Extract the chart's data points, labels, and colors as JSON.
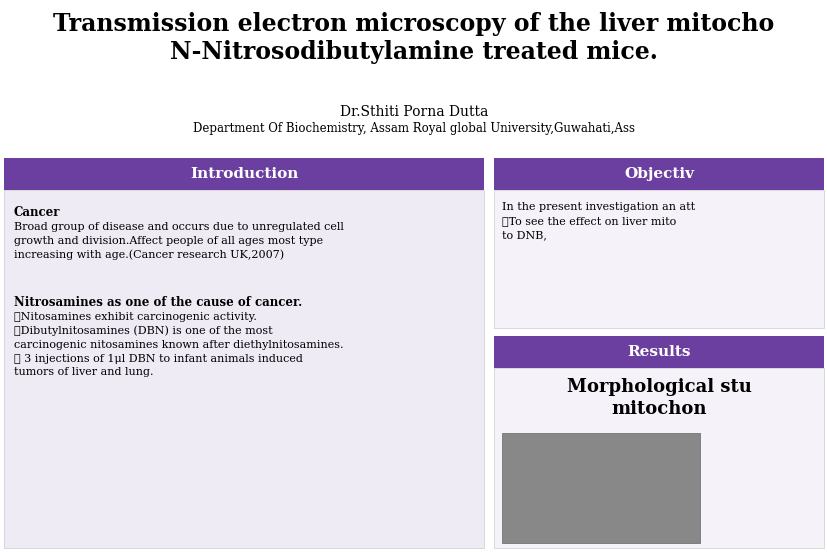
{
  "title_line1": "Transmission electron microscopy of the liver mitocho",
  "title_line2": "N-Nitrosodibutylamine treated mice.",
  "author": "Dr.Sthiti Porna Dutta",
  "affiliation": "Department Of Biochemistry, Assam Royal global University,Guwahati,Ass",
  "intro_header": "Introduction",
  "objectives_header": "Objectiv",
  "results_header": "Results",
  "header_bg_color": "#6b3fa0",
  "header_text_color": "#ffffff",
  "section_bg_left": "#eeebf5",
  "section_bg_right": "#f5f3f9",
  "background_color": "#ffffff",
  "intro_cancer_title": "Cancer",
  "intro_cancer_body": "Broad group of disease and occurs due to unregulated cell\ngrowth and division.Affect people of all ages most type\nincreasing with age.(Cancer research UK,2007)",
  "intro_nitro_title": "Nitrosamines as one of the cause of cancer.",
  "intro_nitro_body": "➤Nitosamines exhibit carcinogenic activity.\n➤Dibutylnitosamines (DBN) is one of the most\ncarcinogenic nitosamines known after diethylnitosamines.\n➤ 3 injections of 1μl DBN to infant animals induced\ntumors of liver and lung.",
  "objectives_body": "In the present investigation an att\n➤To see the effect on liver mito\nto DNB,",
  "results_title_line1": "Morphological stu",
  "results_title_line2": "mitochon",
  "title_fontsize": 17,
  "author_fontsize": 10,
  "affil_fontsize": 8.5,
  "header_fontsize": 11,
  "body_fontsize": 8,
  "results_title_fontsize": 13,
  "figw": 8.28,
  "figh": 5.52,
  "dpi": 100
}
